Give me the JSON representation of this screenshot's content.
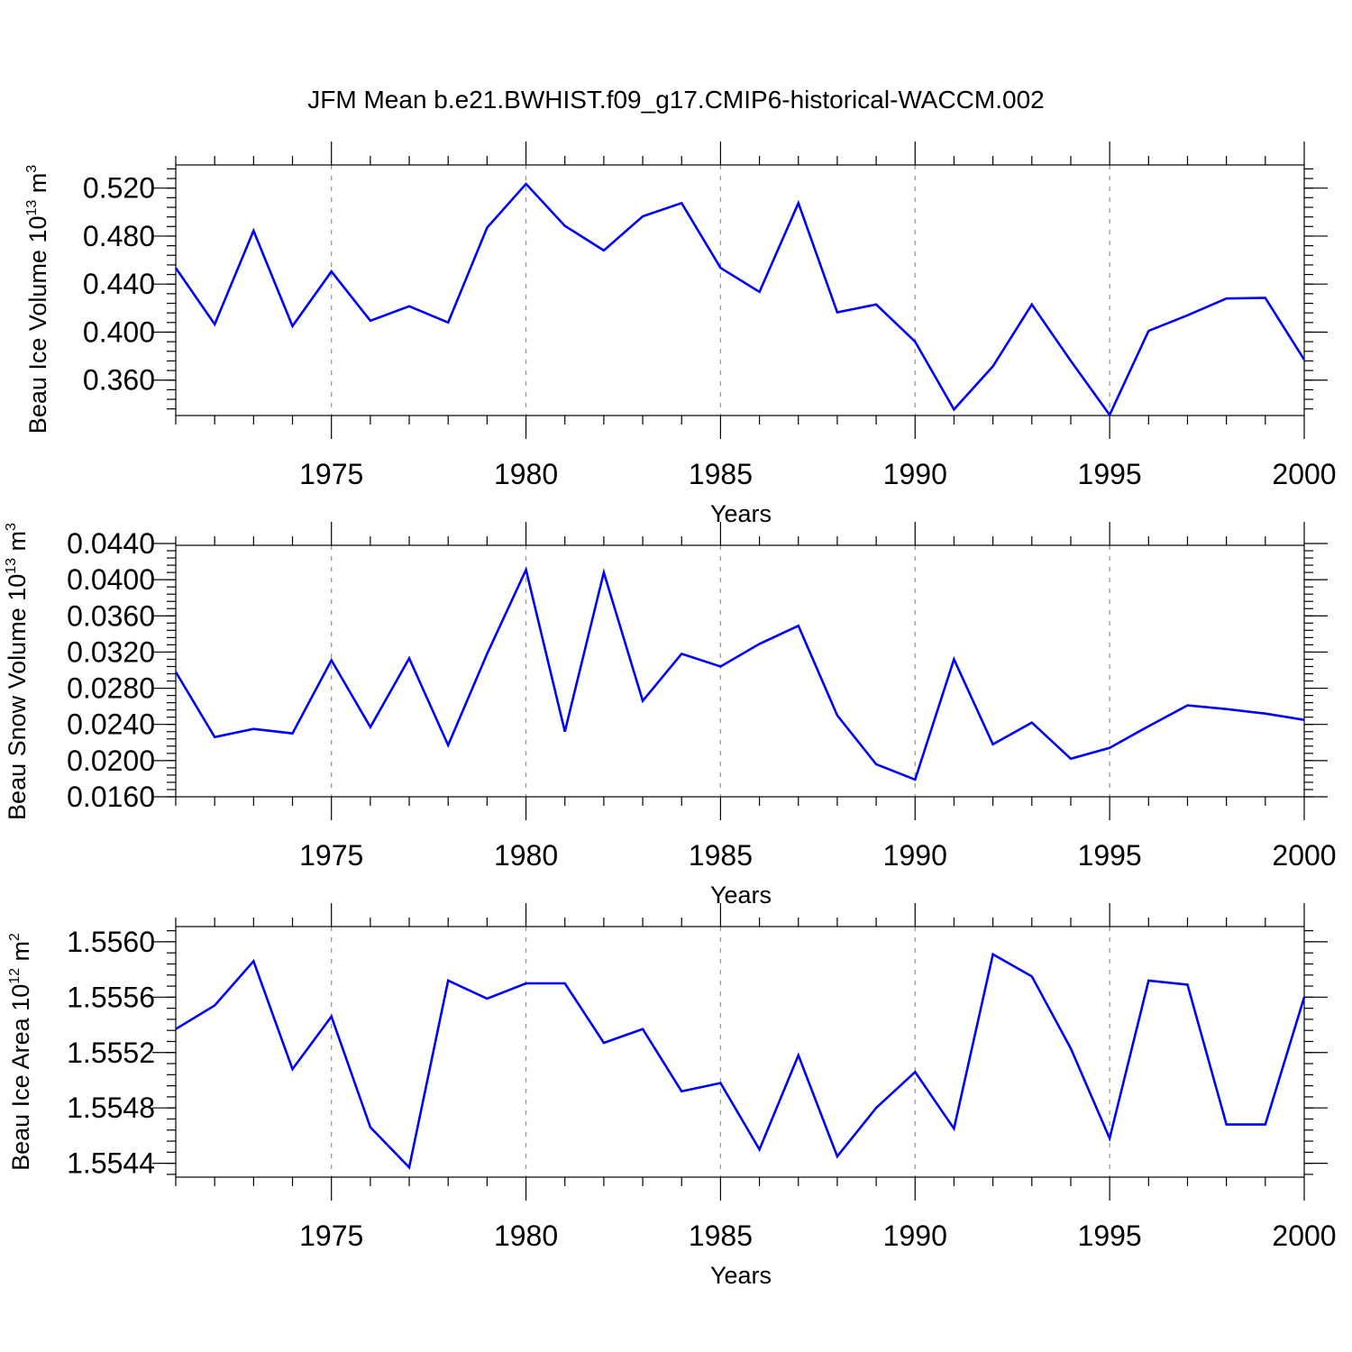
{
  "title": "JFM Mean b.e21.BWHIST.f09_g17.CMIP6-historical-WACCM.002",
  "series_color": "#0000ff",
  "chart_data": [
    {
      "type": "line",
      "ylabel": "Beau Ice Volume 10",
      "ylabel_exp": "13",
      "ylabel_unit": " m",
      "ylabel_unit_exp": "3",
      "xlabel": "Years",
      "xlim": [
        1971,
        2000
      ],
      "ylim": [
        0.3305,
        0.5393
      ],
      "x_ticks": [
        1975,
        1980,
        1985,
        1990,
        1995,
        2000
      ],
      "x_tick_labels": [
        "1975",
        "1980",
        "1985",
        "1990",
        "1995",
        "2000"
      ],
      "y_ticks": [
        0.36,
        0.4,
        0.44,
        0.48,
        0.52
      ],
      "y_tick_labels": [
        "0.360",
        "0.400",
        "0.440",
        "0.480",
        "0.520"
      ],
      "y_minor_step": 0.008,
      "x": [
        1971,
        1972,
        1973,
        1974,
        1975,
        1976,
        1977,
        1978,
        1979,
        1980,
        1981,
        1982,
        1983,
        1984,
        1985,
        1986,
        1987,
        1988,
        1989,
        1990,
        1991,
        1992,
        1993,
        1994,
        1995,
        1996,
        1997,
        1998,
        1999,
        2000
      ],
      "values": [
        0.4535,
        0.4065,
        0.4845,
        0.405,
        0.4505,
        0.4095,
        0.4215,
        0.408,
        0.487,
        0.5235,
        0.4885,
        0.468,
        0.4965,
        0.5075,
        0.4535,
        0.4335,
        0.5075,
        0.4165,
        0.423,
        0.392,
        0.3355,
        0.3715,
        0.423,
        0.376,
        0.331,
        0.401,
        0.414,
        0.428,
        0.4285,
        0.377
      ]
    },
    {
      "type": "line",
      "ylabel": "Beau Snow Volume 10",
      "ylabel_exp": "13",
      "ylabel_unit": " m",
      "ylabel_unit_exp": "3",
      "xlabel": "Years",
      "xlim": [
        1971,
        2000
      ],
      "ylim": [
        0.016,
        0.0438
      ],
      "x_ticks": [
        1975,
        1980,
        1985,
        1990,
        1995,
        2000
      ],
      "x_tick_labels": [
        "1975",
        "1980",
        "1985",
        "1990",
        "1995",
        "2000"
      ],
      "y_ticks": [
        0.016,
        0.02,
        0.024,
        0.028,
        0.032,
        0.036,
        0.04,
        0.044
      ],
      "y_tick_labels": [
        "0.0160",
        "0.0200",
        "0.0240",
        "0.0280",
        "0.0320",
        "0.0360",
        "0.0400",
        "0.0440"
      ],
      "y_minor_step": 0.0008,
      "x": [
        1971,
        1972,
        1973,
        1974,
        1975,
        1976,
        1977,
        1978,
        1979,
        1980,
        1981,
        1982,
        1983,
        1984,
        1985,
        1986,
        1987,
        1988,
        1989,
        1990,
        1991,
        1992,
        1993,
        1994,
        1995,
        1996,
        1997,
        1998,
        1999,
        2000
      ],
      "values": [
        0.0298,
        0.0226,
        0.0235,
        0.023,
        0.0311,
        0.0237,
        0.0313,
        0.0217,
        0.0318,
        0.0411,
        0.0232,
        0.0408,
        0.0266,
        0.0318,
        0.0304,
        0.0329,
        0.0349,
        0.025,
        0.0196,
        0.0179,
        0.0312,
        0.0218,
        0.0242,
        0.0202,
        0.0214,
        0.0238,
        0.0261,
        0.0257,
        0.0252,
        0.0245
      ]
    },
    {
      "type": "line",
      "ylabel": "Beau Ice Area 10",
      "ylabel_exp": "12",
      "ylabel_unit": " m",
      "ylabel_unit_exp": "2",
      "xlabel": "Years",
      "xlim": [
        1971,
        2000
      ],
      "ylim": [
        1.5543,
        1.55611
      ],
      "x_ticks": [
        1975,
        1980,
        1985,
        1990,
        1995,
        2000
      ],
      "x_tick_labels": [
        "1975",
        "1980",
        "1985",
        "1990",
        "1995",
        "2000"
      ],
      "y_ticks": [
        1.5544,
        1.5548,
        1.5552,
        1.5556,
        1.556
      ],
      "y_tick_labels": [
        "1.5544",
        "1.5548",
        "1.5552",
        "1.5556",
        "1.5560"
      ],
      "y_minor_step": 8e-05,
      "x": [
        1971,
        1972,
        1973,
        1974,
        1975,
        1976,
        1977,
        1978,
        1979,
        1980,
        1981,
        1982,
        1983,
        1984,
        1985,
        1986,
        1987,
        1988,
        1989,
        1990,
        1991,
        1992,
        1993,
        1994,
        1995,
        1996,
        1997,
        1998,
        1999,
        2000
      ],
      "values": [
        1.55537,
        1.55554,
        1.55586,
        1.55508,
        1.55546,
        1.55466,
        1.55437,
        1.55572,
        1.55559,
        1.5557,
        1.5557,
        1.55527,
        1.55537,
        1.55492,
        1.55498,
        1.5545,
        1.55518,
        1.55445,
        1.5548,
        1.55506,
        1.55465,
        1.55591,
        1.55575,
        1.55523,
        1.55458,
        1.55572,
        1.55569,
        1.55468,
        1.55468,
        1.5556
      ]
    }
  ]
}
